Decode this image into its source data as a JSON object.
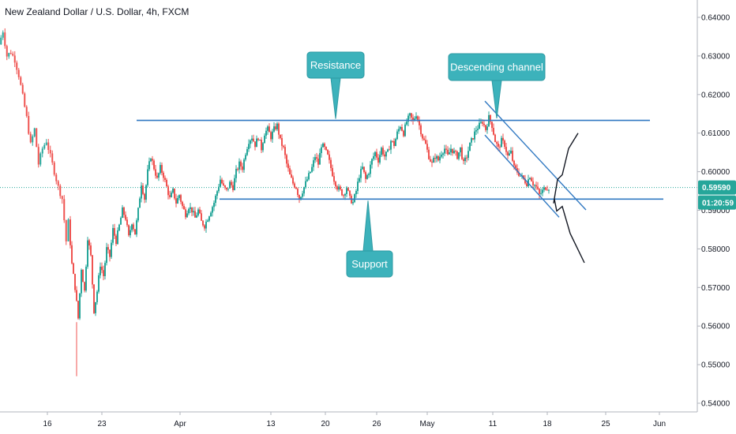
{
  "header": {
    "title": "New Zealand Dollar / U.S. Dollar, 4h, FXCM"
  },
  "chart_data": {
    "type": "candlestick",
    "y_ticks": [
      "0.64000",
      "0.63000",
      "0.62000",
      "0.61000",
      "0.60000",
      "0.59000",
      "0.58000",
      "0.57000",
      "0.56000",
      "0.55000",
      "0.54000"
    ],
    "x_ticks": [
      "16",
      "23",
      "Apr",
      "13",
      "20",
      "26",
      "May",
      "11",
      "18",
      "25",
      "Jun"
    ],
    "ylim": [
      0.5398,
      0.6448
    ],
    "last_price": "0.59590",
    "countdown": "01:20:59",
    "colors": {
      "up": "#26a69a",
      "down": "#ef5350",
      "line": "#3179c2",
      "callout": "#3cb2bb",
      "callout_border": "#2d9aa3",
      "price_tag": "#26a69a"
    },
    "annotations": {
      "resistance": {
        "label": "Resistance",
        "price": 0.6133
      },
      "support": {
        "label": "Support",
        "price": 0.5929
      },
      "channel": {
        "label": "Descending channel"
      }
    },
    "series": [
      {
        "x": 0,
        "close": 0.633
      },
      {
        "x": 5,
        "close": 0.6365
      },
      {
        "x": 10,
        "close": 0.63
      },
      {
        "x": 15,
        "close": 0.631
      },
      {
        "x": 20,
        "close": 0.629
      },
      {
        "x": 25,
        "close": 0.625
      },
      {
        "x": 30,
        "close": 0.6195
      },
      {
        "x": 35,
        "close": 0.614
      },
      {
        "x": 40,
        "close": 0.607
      },
      {
        "x": 45,
        "close": 0.611
      },
      {
        "x": 50,
        "close": 0.602
      },
      {
        "x": 55,
        "close": 0.606
      },
      {
        "x": 60,
        "close": 0.608
      },
      {
        "x": 65,
        "close": 0.604
      },
      {
        "x": 70,
        "close": 0.6
      },
      {
        "x": 75,
        "close": 0.596
      },
      {
        "x": 80,
        "close": 0.593
      },
      {
        "x": 85,
        "close": 0.582
      },
      {
        "x": 88,
        "close": 0.587
      },
      {
        "x": 92,
        "close": 0.576
      },
      {
        "x": 96,
        "close": 0.57
      },
      {
        "x": 100,
        "close": 0.562
      },
      {
        "x": 104,
        "close": 0.575
      },
      {
        "x": 108,
        "close": 0.569
      },
      {
        "x": 112,
        "close": 0.583
      },
      {
        "x": 116,
        "close": 0.578
      },
      {
        "x": 120,
        "close": 0.564
      },
      {
        "x": 124,
        "close": 0.569
      },
      {
        "x": 128,
        "close": 0.576
      },
      {
        "x": 132,
        "close": 0.573
      },
      {
        "x": 136,
        "close": 0.58
      },
      {
        "x": 140,
        "close": 0.578
      },
      {
        "x": 144,
        "close": 0.585
      },
      {
        "x": 148,
        "close": 0.582
      },
      {
        "x": 152,
        "close": 0.586
      },
      {
        "x": 156,
        "close": 0.59
      },
      {
        "x": 160,
        "close": 0.588
      },
      {
        "x": 164,
        "close": 0.583
      },
      {
        "x": 168,
        "close": 0.587
      },
      {
        "x": 172,
        "close": 0.584
      },
      {
        "x": 176,
        "close": 0.59
      },
      {
        "x": 180,
        "close": 0.597
      },
      {
        "x": 184,
        "close": 0.593
      },
      {
        "x": 188,
        "close": 0.6
      },
      {
        "x": 192,
        "close": 0.604
      },
      {
        "x": 196,
        "close": 0.601
      },
      {
        "x": 200,
        "close": 0.598
      },
      {
        "x": 204,
        "close": 0.601
      },
      {
        "x": 208,
        "close": 0.599
      },
      {
        "x": 212,
        "close": 0.596
      },
      {
        "x": 216,
        "close": 0.593
      },
      {
        "x": 220,
        "close": 0.595
      },
      {
        "x": 224,
        "close": 0.592
      },
      {
        "x": 228,
        "close": 0.594
      },
      {
        "x": 232,
        "close": 0.591
      },
      {
        "x": 236,
        "close": 0.589
      },
      {
        "x": 240,
        "close": 0.591
      },
      {
        "x": 244,
        "close": 0.59
      },
      {
        "x": 248,
        "close": 0.588
      },
      {
        "x": 252,
        "close": 0.59
      },
      {
        "x": 256,
        "close": 0.587
      },
      {
        "x": 260,
        "close": 0.586
      },
      {
        "x": 264,
        "close": 0.588
      },
      {
        "x": 268,
        "close": 0.59
      },
      {
        "x": 272,
        "close": 0.592
      },
      {
        "x": 276,
        "close": 0.595
      },
      {
        "x": 280,
        "close": 0.598
      },
      {
        "x": 284,
        "close": 0.596
      },
      {
        "x": 288,
        "close": 0.595
      },
      {
        "x": 292,
        "close": 0.597
      },
      {
        "x": 296,
        "close": 0.596
      },
      {
        "x": 300,
        "close": 0.6
      },
      {
        "x": 304,
        "close": 0.602
      },
      {
        "x": 308,
        "close": 0.601
      },
      {
        "x": 312,
        "close": 0.605
      },
      {
        "x": 316,
        "close": 0.608
      },
      {
        "x": 320,
        "close": 0.609
      },
      {
        "x": 324,
        "close": 0.607
      },
      {
        "x": 328,
        "close": 0.609
      },
      {
        "x": 332,
        "close": 0.606
      },
      {
        "x": 336,
        "close": 0.61
      },
      {
        "x": 340,
        "close": 0.611
      },
      {
        "x": 344,
        "close": 0.609
      },
      {
        "x": 348,
        "close": 0.611
      },
      {
        "x": 352,
        "close": 0.612
      },
      {
        "x": 356,
        "close": 0.608
      },
      {
        "x": 360,
        "close": 0.606
      },
      {
        "x": 364,
        "close": 0.602
      },
      {
        "x": 368,
        "close": 0.599
      },
      {
        "x": 372,
        "close": 0.597
      },
      {
        "x": 376,
        "close": 0.596
      },
      {
        "x": 380,
        "close": 0.593
      },
      {
        "x": 384,
        "close": 0.595
      },
      {
        "x": 388,
        "close": 0.597
      },
      {
        "x": 392,
        "close": 0.599
      },
      {
        "x": 396,
        "close": 0.601
      },
      {
        "x": 400,
        "close": 0.604
      },
      {
        "x": 404,
        "close": 0.602
      },
      {
        "x": 408,
        "close": 0.607
      },
      {
        "x": 412,
        "close": 0.606
      },
      {
        "x": 416,
        "close": 0.604
      },
      {
        "x": 420,
        "close": 0.601
      },
      {
        "x": 424,
        "close": 0.598
      },
      {
        "x": 428,
        "close": 0.596
      },
      {
        "x": 432,
        "close": 0.595
      },
      {
        "x": 436,
        "close": 0.594
      },
      {
        "x": 440,
        "close": 0.596
      },
      {
        "x": 444,
        "close": 0.593
      },
      {
        "x": 448,
        "close": 0.592
      },
      {
        "x": 452,
        "close": 0.595
      },
      {
        "x": 456,
        "close": 0.599
      },
      {
        "x": 460,
        "close": 0.601
      },
      {
        "x": 464,
        "close": 0.598
      },
      {
        "x": 468,
        "close": 0.6
      },
      {
        "x": 472,
        "close": 0.603
      },
      {
        "x": 476,
        "close": 0.605
      },
      {
        "x": 480,
        "close": 0.603
      },
      {
        "x": 484,
        "close": 0.606
      },
      {
        "x": 488,
        "close": 0.604
      },
      {
        "x": 492,
        "close": 0.605
      },
      {
        "x": 496,
        "close": 0.608
      },
      {
        "x": 500,
        "close": 0.607
      },
      {
        "x": 504,
        "close": 0.61
      },
      {
        "x": 508,
        "close": 0.612
      },
      {
        "x": 512,
        "close": 0.61
      },
      {
        "x": 516,
        "close": 0.613
      },
      {
        "x": 520,
        "close": 0.6145
      },
      {
        "x": 524,
        "close": 0.613
      },
      {
        "x": 528,
        "close": 0.615
      },
      {
        "x": 532,
        "close": 0.612
      },
      {
        "x": 536,
        "close": 0.609
      },
      {
        "x": 540,
        "close": 0.607
      },
      {
        "x": 544,
        "close": 0.604
      },
      {
        "x": 548,
        "close": 0.602
      },
      {
        "x": 552,
        "close": 0.604
      },
      {
        "x": 556,
        "close": 0.603
      },
      {
        "x": 560,
        "close": 0.605
      },
      {
        "x": 564,
        "close": 0.606
      },
      {
        "x": 568,
        "close": 0.604
      },
      {
        "x": 572,
        "close": 0.606
      },
      {
        "x": 576,
        "close": 0.605
      },
      {
        "x": 580,
        "close": 0.604
      },
      {
        "x": 584,
        "close": 0.606
      },
      {
        "x": 588,
        "close": 0.602
      },
      {
        "x": 592,
        "close": 0.604
      },
      {
        "x": 596,
        "close": 0.607
      },
      {
        "x": 600,
        "close": 0.609
      },
      {
        "x": 604,
        "close": 0.611
      },
      {
        "x": 608,
        "close": 0.612
      },
      {
        "x": 612,
        "close": 0.613
      },
      {
        "x": 616,
        "close": 0.611
      },
      {
        "x": 620,
        "close": 0.614
      },
      {
        "x": 624,
        "close": 0.612
      },
      {
        "x": 628,
        "close": 0.608
      },
      {
        "x": 632,
        "close": 0.606
      },
      {
        "x": 636,
        "close": 0.608
      },
      {
        "x": 640,
        "close": 0.607
      },
      {
        "x": 644,
        "close": 0.604
      },
      {
        "x": 648,
        "close": 0.605
      },
      {
        "x": 652,
        "close": 0.601
      },
      {
        "x": 656,
        "close": 0.6
      },
      {
        "x": 660,
        "close": 0.599
      },
      {
        "x": 664,
        "close": 0.598
      },
      {
        "x": 668,
        "close": 0.597
      },
      {
        "x": 672,
        "close": 0.599
      },
      {
        "x": 676,
        "close": 0.597
      },
      {
        "x": 680,
        "close": 0.596
      },
      {
        "x": 684,
        "close": 0.594
      },
      {
        "x": 688,
        "close": 0.595
      },
      {
        "x": 692,
        "close": 0.596
      },
      {
        "x": 696,
        "close": 0.5959
      }
    ],
    "channel_upper": [
      {
        "x": 614,
        "price": 0.6183
      },
      {
        "x": 742,
        "price": 0.5901
      }
    ],
    "channel_lower": [
      {
        "x": 614,
        "price": 0.6095
      },
      {
        "x": 708,
        "price": 0.5882
      }
    ],
    "projection_up": [
      {
        "x": 701,
        "price": 0.5918
      },
      {
        "x": 706,
        "price": 0.598
      },
      {
        "x": 712,
        "price": 0.5992
      },
      {
        "x": 720,
        "price": 0.606
      },
      {
        "x": 732,
        "price": 0.61
      }
    ],
    "projection_down": [
      {
        "x": 702,
        "price": 0.5929
      },
      {
        "x": 705,
        "price": 0.5898
      },
      {
        "x": 712,
        "price": 0.591
      },
      {
        "x": 722,
        "price": 0.584
      },
      {
        "x": 740,
        "price": 0.5764
      }
    ]
  }
}
